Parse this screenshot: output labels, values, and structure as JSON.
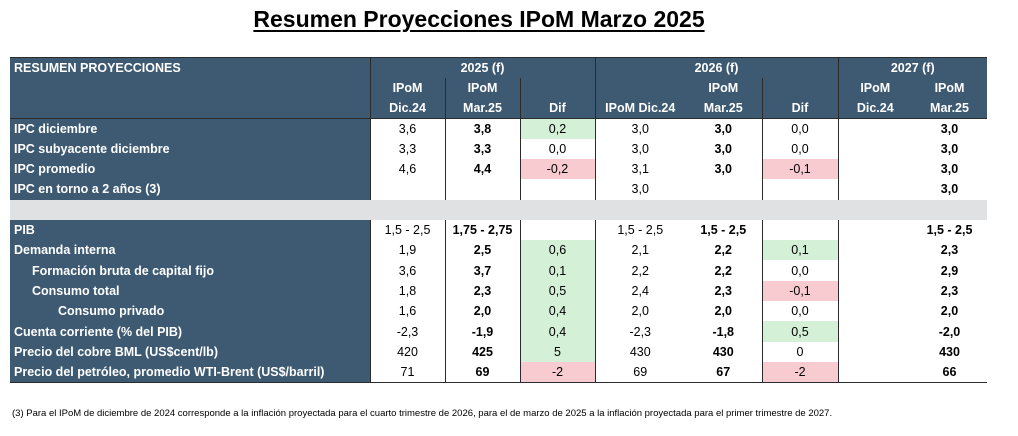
{
  "title": "Resumen Proyecciones IPoM Marzo 2025",
  "header": {
    "corner_label": "RESUMEN PROYECCIONES",
    "years": [
      "2025 (f)",
      "2026 (f)",
      "2027 (f)"
    ],
    "sub_top": [
      "IPoM",
      "IPoM",
      "",
      "",
      "IPoM",
      "",
      "IPoM",
      "IPoM"
    ],
    "sub_bottom": [
      "Dic.24",
      "Mar.25",
      "Dif",
      "IPoM Dic.24",
      "Mar.25",
      "Dif",
      "Dic.24",
      "Mar.25"
    ]
  },
  "rows": [
    {
      "label": "IPC diciembre",
      "values": [
        "3,6",
        "3,8",
        "0,2",
        "3,0",
        "3,0",
        "0,0",
        "",
        "3,0"
      ]
    },
    {
      "label": "IPC subyacente diciembre",
      "values": [
        "3,3",
        "3,3",
        "0,0",
        "3,0",
        "3,0",
        "0,0",
        "",
        "3,0"
      ]
    },
    {
      "label": "IPC promedio",
      "values": [
        "4,6",
        "4,4",
        "-0,2",
        "3,1",
        "3,0",
        "-0,1",
        "",
        "3,0"
      ]
    },
    {
      "label": "IPC  en torno a 2 años (3)",
      "values": [
        "",
        "",
        "",
        "3,0",
        "",
        "",
        "",
        "3,0"
      ]
    },
    {
      "label": "PIB",
      "values": [
        "1,5 - 2,5",
        "1,75 - 2,75",
        "",
        "1,5 - 2,5",
        "1,5 - 2,5",
        "",
        "",
        "1,5 - 2,5"
      ]
    },
    {
      "label": "Demanda interna",
      "values": [
        "1,9",
        "2,5",
        "0,6",
        "2,1",
        "2,2",
        "0,1",
        "",
        "2,3"
      ]
    },
    {
      "label": "Formación bruta de capital fijo",
      "values": [
        "3,6",
        "3,7",
        "0,1",
        "2,2",
        "2,2",
        "0,0",
        "",
        "2,9"
      ]
    },
    {
      "label": "Consumo total",
      "values": [
        "1,8",
        "2,3",
        "0,5",
        "2,4",
        "2,3",
        "-0,1",
        "",
        "2,3"
      ]
    },
    {
      "label": "Consumo privado",
      "values": [
        "1,6",
        "2,0",
        "0,4",
        "2,0",
        "2,0",
        "0,0",
        "",
        "2,0"
      ]
    },
    {
      "label": "Cuenta corriente (% del PIB)",
      "values": [
        "-2,3",
        "-1,9",
        "0,4",
        "-2,3",
        "-1,8",
        "0,5",
        "",
        "-2,0"
      ]
    },
    {
      "label": "Precio del cobre BML (US$cent/lb)",
      "values": [
        "420",
        "425",
        "5",
        "430",
        "430",
        "0",
        "",
        "430"
      ]
    },
    {
      "label": "Precio del petróleo, promedio WTI-Brent (US$/barril)",
      "values": [
        "71",
        "69",
        "-2",
        "69",
        "67",
        "-2",
        "",
        "66"
      ]
    }
  ],
  "footnote": "(3) Para el IPoM de diciembre de 2024 corresponde a la inflación proyectada para el cuarto trimestre de 2026, para el de marzo de 2025 a la inflación proyectada para el primer trimestre de 2027.",
  "colors": {
    "header_bg": "#3d5a72",
    "positive_diff": "#d4f0d6",
    "negative_diff": "#f8cbd0",
    "separator": "#dfe1e3"
  }
}
